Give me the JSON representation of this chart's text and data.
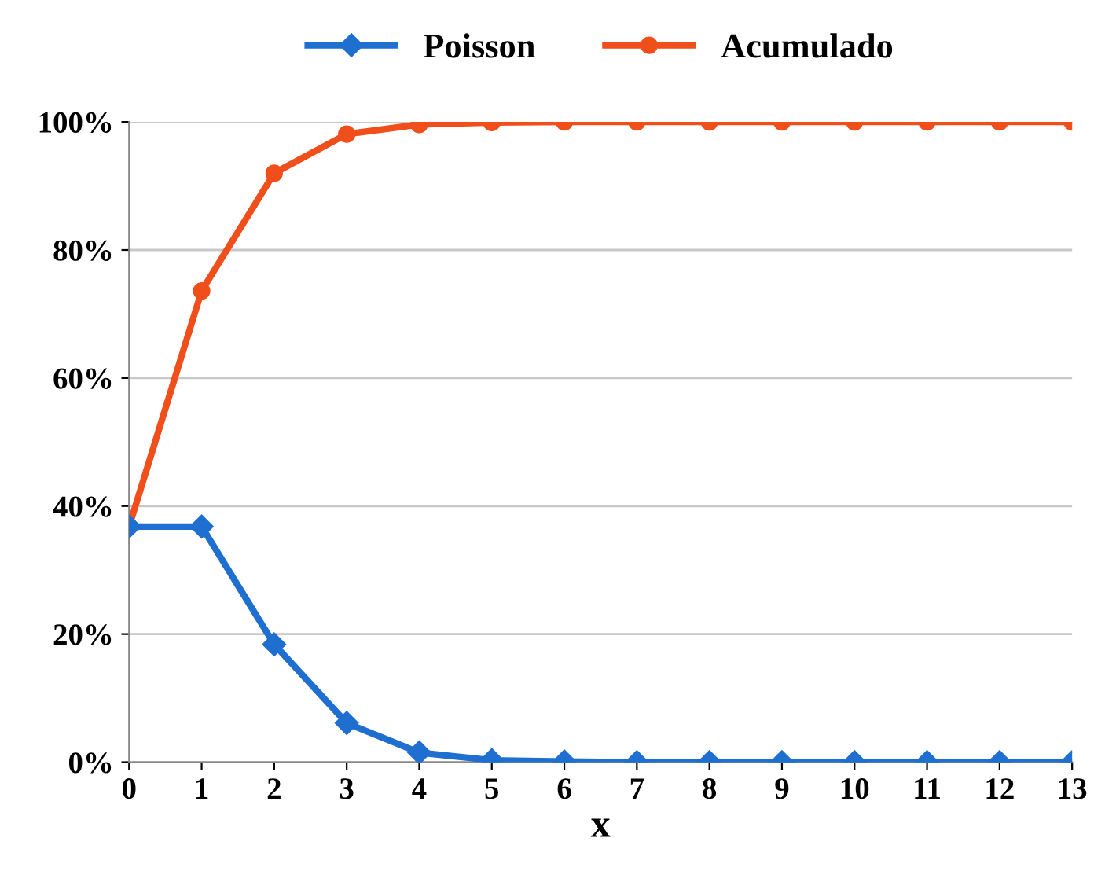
{
  "chart_data": {
    "type": "line",
    "xlabel": "x",
    "x": [
      0,
      1,
      2,
      3,
      4,
      5,
      6,
      7,
      8,
      9,
      10,
      11,
      12,
      13
    ],
    "xlim": [
      0,
      13
    ],
    "xticks": [
      0,
      1,
      2,
      3,
      4,
      5,
      6,
      7,
      8,
      9,
      10,
      11,
      12,
      13
    ],
    "ylim": [
      0,
      100
    ],
    "yticks": [
      {
        "value": 0,
        "label": "0%"
      },
      {
        "value": 20,
        "label": "20%"
      },
      {
        "value": 40,
        "label": "40%"
      },
      {
        "value": 60,
        "label": "60%"
      },
      {
        "value": 80,
        "label": "80%"
      },
      {
        "value": 100,
        "label": "100%"
      }
    ],
    "grid": "y",
    "legend": "top",
    "line_style": "solid",
    "series": [
      {
        "name": "Poisson",
        "color": "#1f6fd0",
        "marker": "diamond",
        "values": [
          36.8,
          36.8,
          18.4,
          6.1,
          1.5,
          0.3,
          0.1,
          0,
          0,
          0,
          0,
          0,
          0,
          0
        ]
      },
      {
        "name": "Acumulado",
        "color": "#f04e1a",
        "marker": "circle",
        "values": [
          36.8,
          73.6,
          92.0,
          98.1,
          99.6,
          99.9,
          100,
          100,
          100,
          100,
          100,
          100,
          100,
          100
        ]
      }
    ]
  }
}
